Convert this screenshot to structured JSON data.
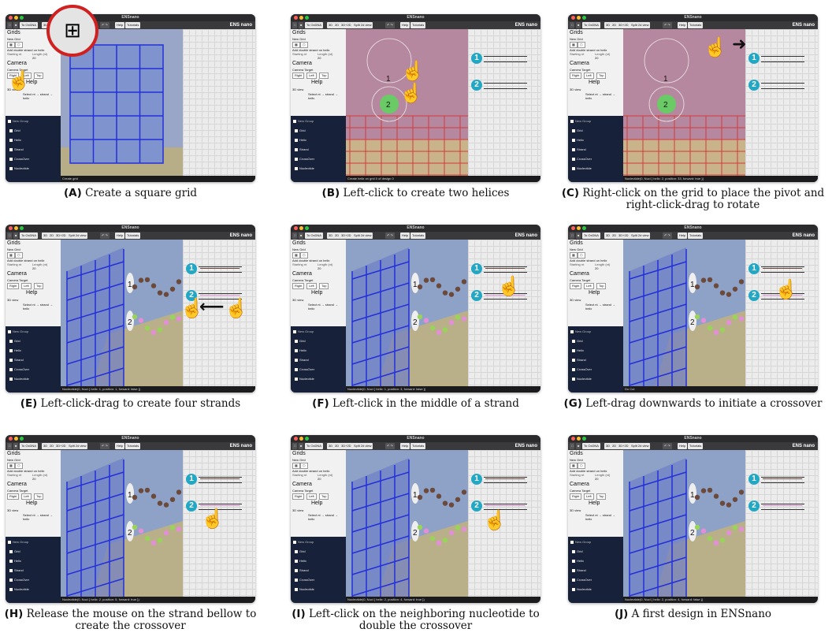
{
  "window": {
    "title": "ENSnano",
    "logo": "ENS nano",
    "toolbar": [
      "To OxDNA",
      "3D",
      "2D",
      "3D+2D",
      "Split 2d view",
      "Help",
      "Tutorials"
    ]
  },
  "sidebar": {
    "grids_heading": "Grids",
    "new_grid": "New Grid",
    "add_double": "Add double strand on helix",
    "starting_nt": "Starting nt",
    "length_nt": "Length (nt)",
    "length_val": "20",
    "camera_heading": "Camera",
    "camera_target": "Camera Target",
    "cam_buttons": [
      "Right",
      "Left",
      "Top"
    ],
    "help_heading": "Help",
    "view3d": "3D view",
    "select_hint": "Select nt → strand → helix",
    "new_group": "New Group",
    "tree": [
      "Grid",
      "Helix",
      "Strand",
      "CrossOver",
      "Nucleotide"
    ]
  },
  "panels": [
    {
      "letter": "(A)",
      "text": "Create a square grid",
      "status": "Create grid"
    },
    {
      "letter": "(B)",
      "text": "Left-click to create two helices",
      "status": "Create helix on grid 0 of design 0"
    },
    {
      "letter": "(C)",
      "text": "Right-click on the grid to place the pivot and right-click-drag to rotate",
      "status": "Nucleotide(0, Nucl { helix: 2, position: 33, forward: true })"
    },
    {
      "letter": "(E)",
      "text": "Left-click-drag to create four strands",
      "status": "Nucleotide(0, Nucl { helix: 1, position: 1, forward: false })"
    },
    {
      "letter": "(F)",
      "text": "Left-click in the middle of a strand",
      "status": "Nucleotide(0, Nucl { helix: 1, position: 3, forward: false })"
    },
    {
      "letter": "(G)",
      "text": "Left-drag downwards to initiate a crossover",
      "status": "Do Cut"
    },
    {
      "letter": "(H)",
      "text": "Release the mouse on the strand bellow to create the crossover",
      "status": "Nucleotide(0, Nucl { helix: 2, position: 5, forward: true })"
    },
    {
      "letter": "(I)",
      "text": "Left-click on the neighboring nucleotide to double the crossover",
      "status": "Nucleotide(0, Nucl { helix: 2, position: 4, forward: true })"
    },
    {
      "letter": "(J)",
      "text": "A first design in ENSnano",
      "status": "Nucleotide(0, Nucl { helix: 2, position: 4, forward: false })"
    }
  ],
  "helix_labels": [
    "1",
    "2"
  ],
  "colors": {
    "helix_badge": "#22a7c4",
    "grid_red": "#d23a3a",
    "grid_blue": "#2330d8",
    "pink_strand": "#e38fd6",
    "brown_strand": "#6b4a3c",
    "green_strand": "#9ad35a",
    "cursor_highlight": "#5cd65c"
  }
}
